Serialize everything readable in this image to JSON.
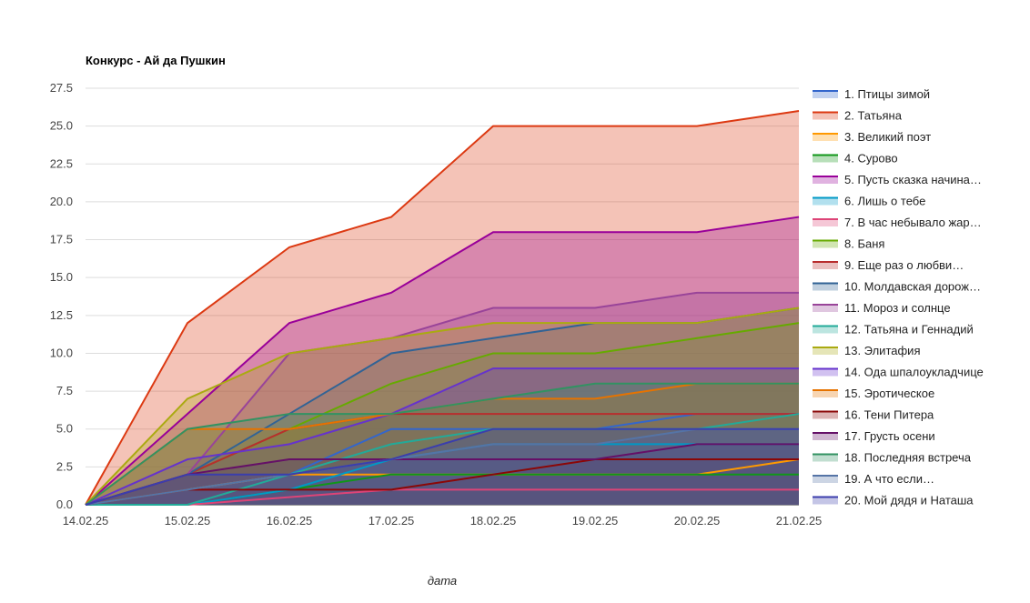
{
  "chart_data": {
    "type": "area",
    "title": "Конкурс - Ай да Пушкин",
    "xlabel": "дата",
    "ylabel": "",
    "ylim": [
      0,
      27.5
    ],
    "yticks": [
      "0.0",
      "2.5",
      "5.0",
      "7.5",
      "10.0",
      "12.5",
      "15.0",
      "17.5",
      "20.0",
      "22.5",
      "25.0",
      "27.5"
    ],
    "grid": true,
    "legend_position": "right",
    "categories": [
      "14.02.25",
      "15.02.25",
      "16.02.25",
      "17.02.25",
      "18.02.25",
      "19.02.25",
      "20.02.25",
      "21.02.25"
    ],
    "series": [
      {
        "name": "1. Птицы зимой",
        "color": "#3366cc",
        "values": [
          0,
          1,
          2,
          5,
          5,
          5,
          6,
          6
        ]
      },
      {
        "name": "2. Татьяна",
        "color": "#dc3912",
        "values": [
          0,
          12,
          17,
          19,
          25,
          25,
          25,
          26
        ]
      },
      {
        "name": "3. Великий поэт",
        "color": "#ff9900",
        "values": [
          0,
          1,
          2,
          2,
          2,
          2,
          2,
          3
        ]
      },
      {
        "name": "4. Сурово",
        "color": "#109618",
        "values": [
          0,
          0,
          1,
          2,
          2,
          2,
          2,
          2
        ]
      },
      {
        "name": "5. Пусть сказка начина…",
        "color": "#990099",
        "values": [
          0,
          6,
          12,
          14,
          18,
          18,
          18,
          19
        ]
      },
      {
        "name": "6. Лишь о тебе",
        "color": "#0099c6",
        "values": [
          0,
          0,
          1,
          3,
          4,
          4,
          4,
          4
        ]
      },
      {
        "name": "7. В час небывало жар…",
        "color": "#dd4477",
        "values": [
          0,
          0,
          0.5,
          1,
          1,
          1,
          1,
          1
        ]
      },
      {
        "name": "8. Баня",
        "color": "#66aa00",
        "values": [
          0,
          2,
          5,
          8,
          10,
          10,
          11,
          12
        ]
      },
      {
        "name": "9. Еще раз о любви…",
        "color": "#b82e2e",
        "values": [
          0,
          2,
          5,
          6,
          6,
          6,
          6,
          6
        ]
      },
      {
        "name": "10. Молдавская дорож…",
        "color": "#316395",
        "values": [
          0,
          2,
          6,
          10,
          11,
          12,
          12,
          13
        ]
      },
      {
        "name": "11. Мороз и солнце",
        "color": "#994499",
        "values": [
          0,
          2,
          10,
          11,
          13,
          13,
          14,
          14
        ]
      },
      {
        "name": "12. Татьяна и Геннадий",
        "color": "#22aa99",
        "values": [
          0,
          0,
          2,
          4,
          5,
          5,
          5,
          6
        ]
      },
      {
        "name": "13. Элитафия",
        "color": "#aaaa11",
        "values": [
          0,
          7,
          10,
          11,
          12,
          12,
          12,
          13
        ]
      },
      {
        "name": "14. Ода шпалоукладчице",
        "color": "#6633cc",
        "values": [
          0,
          3,
          4,
          6,
          9,
          9,
          9,
          9
        ]
      },
      {
        "name": "15. Эротическое",
        "color": "#e67300",
        "values": [
          0,
          5,
          5,
          6,
          7,
          7,
          8,
          8
        ]
      },
      {
        "name": "16. Тени Питера",
        "color": "#8b0707",
        "values": [
          0,
          1,
          1,
          1,
          2,
          3,
          3,
          3
        ]
      },
      {
        "name": "17. Грусть осени",
        "color": "#651067",
        "values": [
          0,
          2,
          3,
          3,
          3,
          3,
          4,
          4
        ]
      },
      {
        "name": "18. Последняя встреча",
        "color": "#329262",
        "values": [
          0,
          5,
          6,
          6,
          7,
          8,
          8,
          8
        ]
      },
      {
        "name": "19. А что если…",
        "color": "#5574a6",
        "values": [
          0,
          1,
          2,
          3,
          4,
          4,
          5,
          5
        ]
      },
      {
        "name": "20. Мой дядя и Наташа",
        "color": "#3b3eac",
        "values": [
          0,
          2,
          2,
          3,
          5,
          5,
          5,
          5
        ]
      }
    ]
  }
}
